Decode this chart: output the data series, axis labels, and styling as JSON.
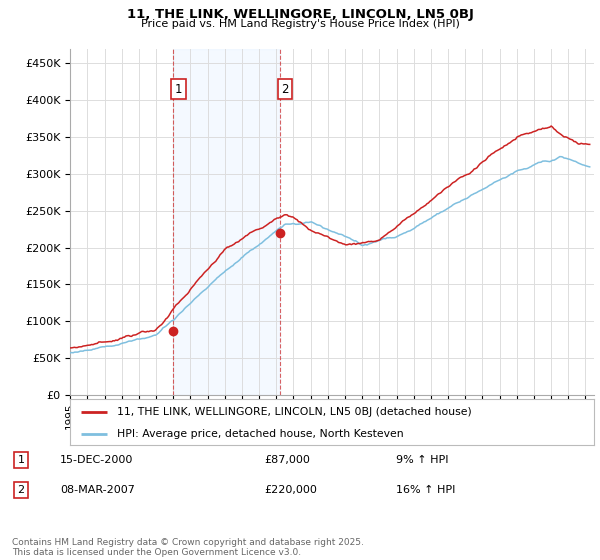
{
  "title": "11, THE LINK, WELLINGORE, LINCOLN, LN5 0BJ",
  "subtitle": "Price paid vs. HM Land Registry's House Price Index (HPI)",
  "ytick_values": [
    0,
    50000,
    100000,
    150000,
    200000,
    250000,
    300000,
    350000,
    400000,
    450000
  ],
  "ylim": [
    0,
    470000
  ],
  "xlim_start": 1995.0,
  "xlim_end": 2025.5,
  "hpi_color": "#7fbfdf",
  "price_color": "#cc2222",
  "marker1_x": 2001.0,
  "marker1_y": 87000,
  "marker2_x": 2007.2,
  "marker2_y": 220000,
  "legend_label_price": "11, THE LINK, WELLINGORE, LINCOLN, LN5 0BJ (detached house)",
  "legend_label_hpi": "HPI: Average price, detached house, North Kesteven",
  "footer": "Contains HM Land Registry data © Crown copyright and database right 2025.\nThis data is licensed under the Open Government Licence v3.0.",
  "background_color": "#ffffff",
  "grid_color": "#dddddd",
  "shade_color": "#ddeeff"
}
